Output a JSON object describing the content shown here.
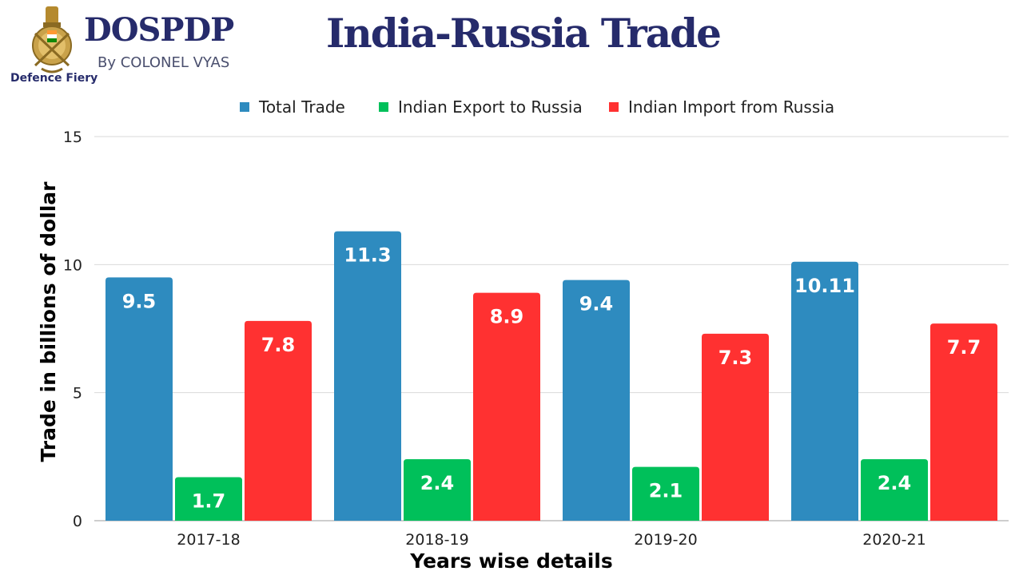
{
  "brand": {
    "name": "DOSPDP",
    "byline": "By COLONEL VYAS",
    "tagline": "Defence Fiery"
  },
  "colors": {
    "title": "#262b6b",
    "total": "#2e8bbf",
    "export": "#00c05a",
    "import": "#ff3131",
    "grid": "#d9d9d9",
    "axis_text": "#222222"
  },
  "chart_data": {
    "type": "bar",
    "title": "India-Russia Trade",
    "xlabel": "Years wise details",
    "ylabel": "Trade in billions of dollar",
    "categories": [
      "2017-18",
      "2018-19",
      "2019-20",
      "2020-21"
    ],
    "series": [
      {
        "name": "Total Trade",
        "color": "#2e8bbf",
        "values": [
          9.5,
          11.3,
          9.4,
          10.11
        ],
        "labels": [
          "9.5",
          "11.3",
          "9.4",
          "10.11"
        ]
      },
      {
        "name": "Indian Export to Russia",
        "color": "#00c05a",
        "values": [
          1.7,
          2.4,
          2.1,
          2.4
        ],
        "labels": [
          "1.7",
          "2.4",
          "2.1",
          "2.4"
        ]
      },
      {
        "name": "Indian Import from Russia",
        "color": "#ff3131",
        "values": [
          7.8,
          8.9,
          7.3,
          7.7
        ],
        "labels": [
          "7.8",
          "8.9",
          "7.3",
          "7.7"
        ]
      }
    ],
    "ylim": [
      0,
      15
    ],
    "yticks": [
      "0",
      "5",
      "10",
      "15"
    ],
    "grid": true,
    "legend": "top-center"
  }
}
